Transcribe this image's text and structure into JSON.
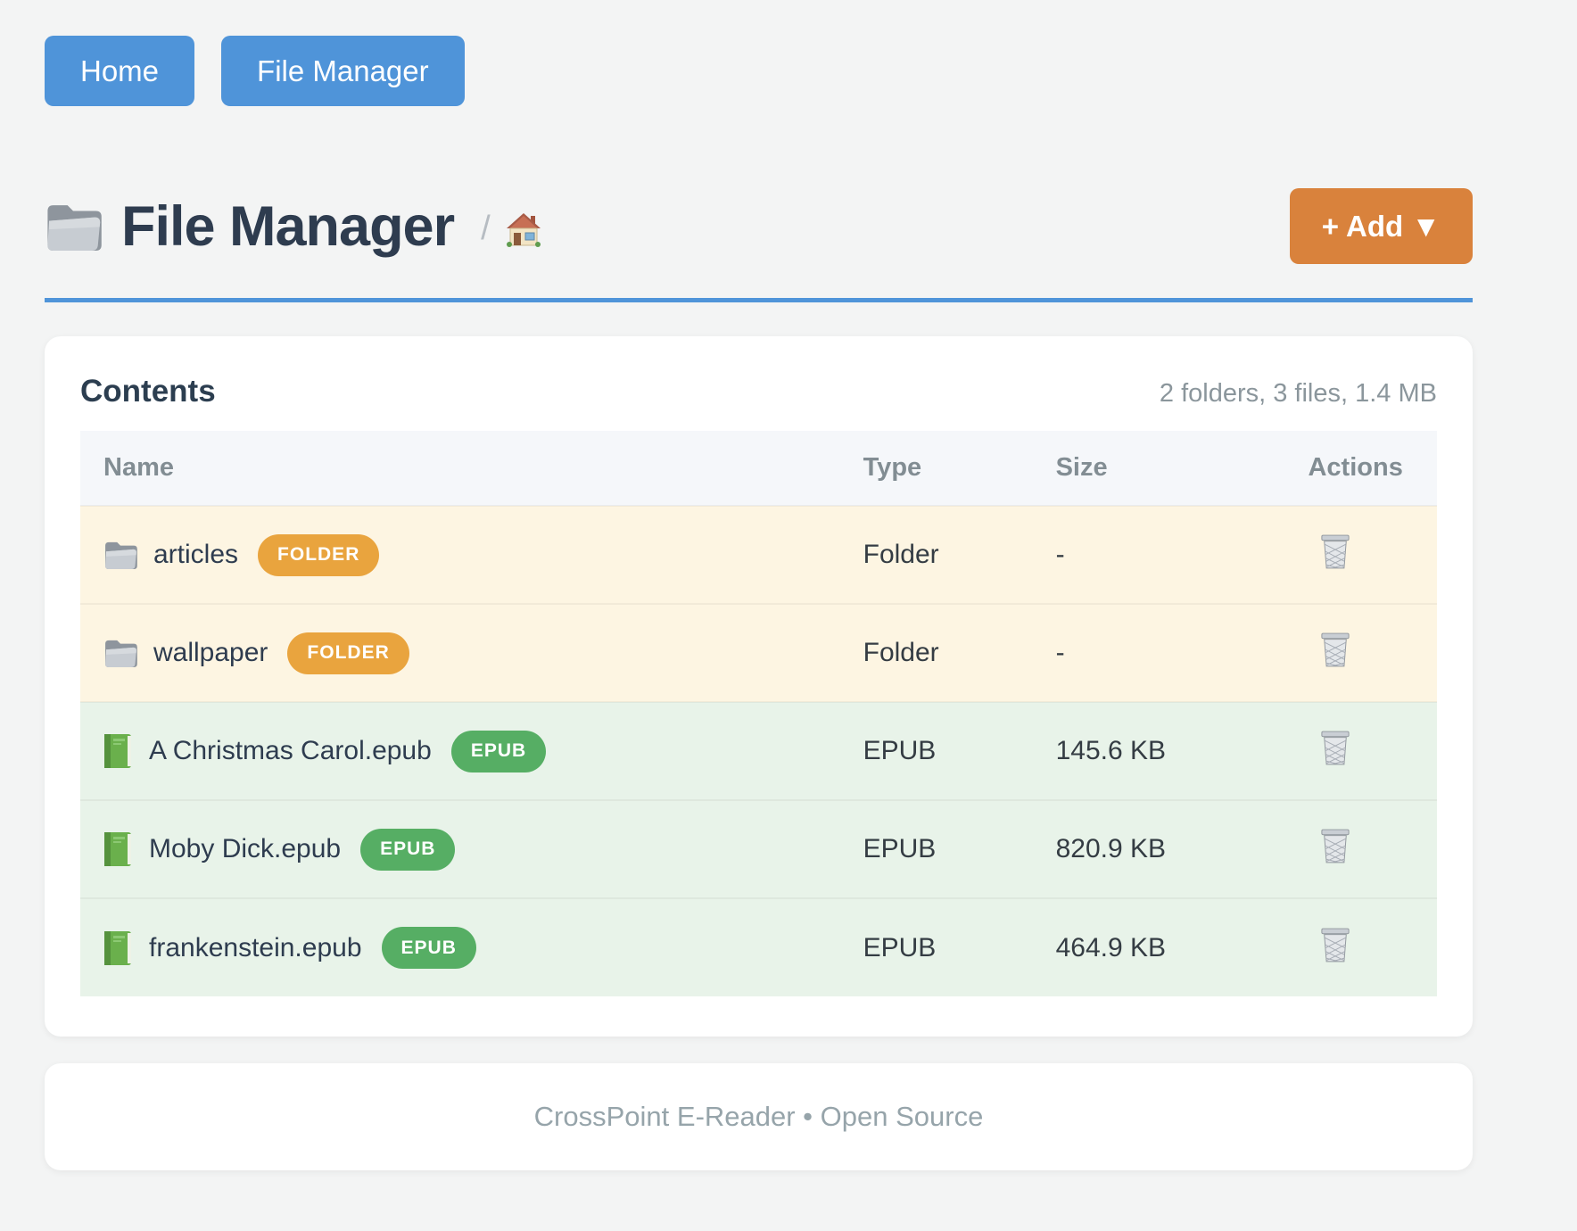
{
  "nav": {
    "buttons": [
      {
        "label": "Home"
      },
      {
        "label": "File Manager"
      }
    ]
  },
  "header": {
    "title": "File Manager",
    "title_icon": "folder-icon",
    "breadcrumb_separator": "/",
    "breadcrumb_home_icon": "house-icon",
    "add_button_label": "+ Add ▼"
  },
  "contents": {
    "title": "Contents",
    "summary": "2 folders, 3 files, 1.4 MB",
    "columns": [
      "Name",
      "Type",
      "Size",
      "Actions"
    ],
    "rows": [
      {
        "icon": "folder-icon",
        "name": "articles",
        "badge": "FOLDER",
        "kind": "folder",
        "type": "Folder",
        "size": "-",
        "action_icon": "trash-icon"
      },
      {
        "icon": "folder-icon",
        "name": "wallpaper",
        "badge": "FOLDER",
        "kind": "folder",
        "type": "Folder",
        "size": "-",
        "action_icon": "trash-icon"
      },
      {
        "icon": "book-icon",
        "name": "A Christmas Carol.epub",
        "badge": "EPUB",
        "kind": "epub",
        "type": "EPUB",
        "size": "145.6 KB",
        "action_icon": "trash-icon"
      },
      {
        "icon": "book-icon",
        "name": "Moby Dick.epub",
        "badge": "EPUB",
        "kind": "epub",
        "type": "EPUB",
        "size": "820.9 KB",
        "action_icon": "trash-icon"
      },
      {
        "icon": "book-icon",
        "name": "frankenstein.epub",
        "badge": "EPUB",
        "kind": "epub",
        "type": "EPUB",
        "size": "464.9 KB",
        "action_icon": "trash-icon"
      }
    ]
  },
  "footer": {
    "text": "CrossPoint E-Reader • Open Source"
  },
  "colors": {
    "accent_blue": "#4f94d9",
    "accent_orange": "#d9823c",
    "badge_folder": "#e9a43e",
    "badge_epub": "#56ae64",
    "row_folder_bg": "#fdf5e2",
    "row_epub_bg": "#e8f3e9"
  }
}
